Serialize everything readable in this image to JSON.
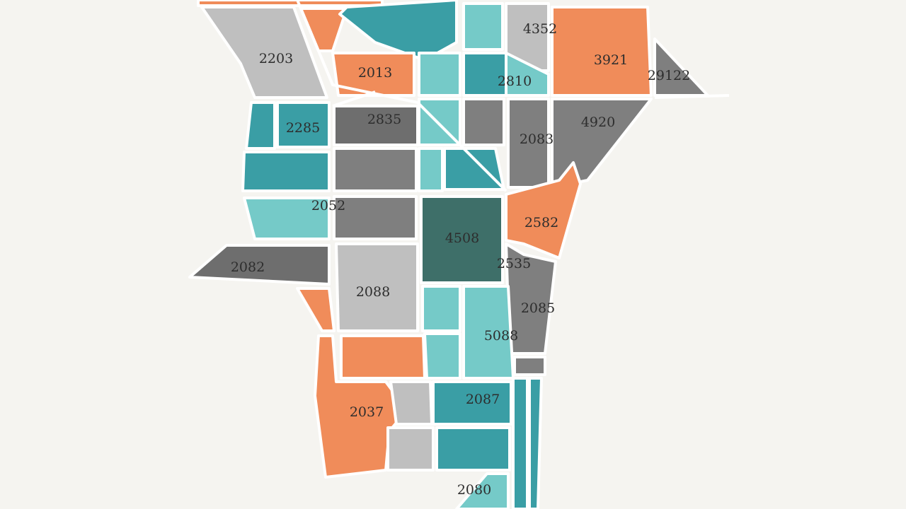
{
  "regions": [
    {
      "label": "4352"
    },
    {
      "label": "2203"
    },
    {
      "label": "3921"
    },
    {
      "label": "2013"
    },
    {
      "label": "2810"
    },
    {
      "label": "29122"
    },
    {
      "label": "2285"
    },
    {
      "label": "2835"
    },
    {
      "label": "4920"
    },
    {
      "label": "2083"
    },
    {
      "label": "2052"
    },
    {
      "label": "2582"
    },
    {
      "label": "4508"
    },
    {
      "label": "2082"
    },
    {
      "label": "2535"
    },
    {
      "label": "2085"
    },
    {
      "label": "2088"
    },
    {
      "label": "5088"
    },
    {
      "label": "2037"
    },
    {
      "label": "2087"
    },
    {
      "label": "2080"
    }
  ]
}
